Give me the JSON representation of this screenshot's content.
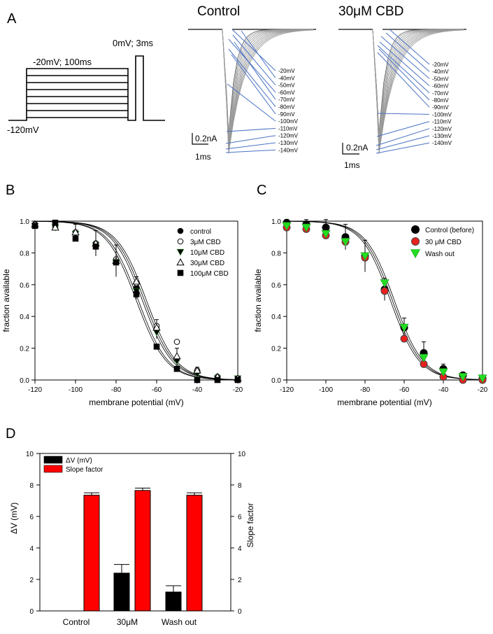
{
  "figure": {
    "panel_labels": [
      "A",
      "B",
      "C",
      "D"
    ]
  },
  "panel_a": {
    "protocol_labels": {
      "hold": "-120mV",
      "prepulse": "-20mV; 100ms",
      "test": "0mV; 3ms"
    },
    "traces": [
      {
        "title": "Control",
        "voltages": [
          "-20mV",
          "-40mV",
          "-50mV",
          "-60mV",
          "-70mV",
          "-80mV",
          "-90mV",
          "-100mV",
          "-110mV",
          "-120mV",
          "-130mV",
          "-140mV"
        ],
        "scale_current": "0.2nA",
        "scale_time": "1ms"
      },
      {
        "title": "30μM CBD",
        "voltages": [
          "-20mV",
          "-40mV",
          "-50mV",
          "-60mV",
          "-70mV",
          "-80mV",
          "-90mV",
          "-100mV",
          "-110mV",
          "-120mV",
          "-130mV",
          "-140mV"
        ],
        "scale_current": "0.2nA",
        "scale_time": "1ms"
      }
    ]
  },
  "chart_data": [
    {
      "panel": "B",
      "type": "scatter",
      "xlabel": "membrane potential (mV)",
      "ylabel": "fraction available",
      "xlim": [
        -120,
        -20
      ],
      "ylim": [
        0,
        1.0
      ],
      "xticks": [
        -120,
        -100,
        -80,
        -60,
        -40,
        -20
      ],
      "yticks": [
        0.0,
        0.2,
        0.4,
        0.6,
        0.8,
        1.0
      ],
      "ytick_labels": [
        "0.0",
        "0.2",
        "0.4",
        "0.6",
        "0.8",
        "1.0"
      ],
      "legend_position": "right",
      "series": [
        {
          "name": "control",
          "marker": "circle-filled",
          "x": [
            -120,
            -110,
            -100,
            -90,
            -80,
            -70,
            -60,
            -50,
            -40,
            -30,
            -20
          ],
          "y": [
            0.98,
            0.97,
            0.93,
            0.86,
            0.75,
            0.58,
            0.32,
            0.13,
            0.05,
            0.02,
            0.01
          ]
        },
        {
          "name": "3μM CBD",
          "marker": "circle-open",
          "x": [
            -120,
            -110,
            -100,
            -90,
            -80,
            -70,
            -60,
            -50,
            -40,
            -30,
            -20
          ],
          "y": [
            0.98,
            0.96,
            0.93,
            0.86,
            0.76,
            0.61,
            0.34,
            0.24,
            0.06,
            0.02,
            0.01
          ]
        },
        {
          "name": "10μM CBD",
          "marker": "triangle-down-filled",
          "x": [
            -120,
            -110,
            -100,
            -90,
            -80,
            -70,
            -60,
            -50,
            -40,
            -30,
            -20
          ],
          "y": [
            0.97,
            0.96,
            0.92,
            0.85,
            0.74,
            0.56,
            0.3,
            0.12,
            0.04,
            0.01,
            0.01
          ]
        },
        {
          "name": "30μM CBD",
          "marker": "triangle-up-open",
          "x": [
            -120,
            -110,
            -100,
            -90,
            -80,
            -70,
            -60,
            -50,
            -40,
            -30,
            -20
          ],
          "y": [
            0.98,
            0.96,
            0.93,
            0.86,
            0.75,
            0.62,
            0.33,
            0.15,
            0.06,
            0.02,
            0.01
          ]
        },
        {
          "name": "100μM CBD",
          "marker": "square-filled",
          "x": [
            -120,
            -110,
            -100,
            -90,
            -80,
            -70,
            -60,
            -50,
            -40,
            -30,
            -20
          ],
          "y": [
            0.97,
            0.99,
            0.89,
            0.84,
            0.74,
            0.54,
            0.21,
            0.07,
            0.0,
            0.0,
            0.0
          ]
        }
      ],
      "fits": [
        {
          "v_half": -67
        },
        {
          "v_half": -66
        },
        {
          "v_half": -69
        },
        {
          "v_half": -65
        },
        {
          "v_half": -70
        }
      ]
    },
    {
      "panel": "C",
      "type": "scatter",
      "xlabel": "membrane potential (mV)",
      "ylabel": "fraction available",
      "xlim": [
        -120,
        -20
      ],
      "ylim": [
        0,
        1.0
      ],
      "xticks": [
        -120,
        -100,
        -80,
        -60,
        -40,
        -20
      ],
      "yticks": [
        0.0,
        0.2,
        0.4,
        0.6,
        0.8,
        1.0
      ],
      "ytick_labels": [
        "0.0",
        "0.2",
        "0.4",
        "0.6",
        "0.8",
        "1.0"
      ],
      "legend_position": "top-right",
      "series": [
        {
          "name": "Control (before)",
          "color": "#000000",
          "marker": "circle",
          "x": [
            -120,
            -110,
            -100,
            -90,
            -80,
            -70,
            -60,
            -50,
            -40,
            -30,
            -20
          ],
          "y": [
            0.99,
            0.98,
            0.96,
            0.9,
            0.78,
            0.57,
            0.33,
            0.17,
            0.07,
            0.03,
            0.01
          ]
        },
        {
          "name": "30 μM CBD",
          "color": "#e8201e",
          "marker": "circle",
          "x": [
            -120,
            -110,
            -100,
            -90,
            -80,
            -70,
            -60,
            -50,
            -40,
            -30,
            -20
          ],
          "y": [
            0.96,
            0.95,
            0.91,
            0.87,
            0.77,
            0.56,
            0.26,
            0.1,
            0.02,
            0.0,
            0.0
          ]
        },
        {
          "name": "Wash out",
          "color": "#22dd22",
          "marker": "triangle-down",
          "x": [
            -120,
            -110,
            -100,
            -90,
            -80,
            -70,
            -60,
            -50,
            -40,
            -30,
            -20
          ],
          "y": [
            0.97,
            0.96,
            0.92,
            0.87,
            0.78,
            0.61,
            0.33,
            0.14,
            0.05,
            0.02,
            0.01
          ]
        }
      ],
      "fits": [
        {
          "v_half": -65
        },
        {
          "v_half": -67
        },
        {
          "v_half": -66
        }
      ]
    },
    {
      "panel": "D",
      "type": "bar",
      "categories": [
        "Control",
        "30μM",
        "Wash out"
      ],
      "ylabel": "ΔV (mV)",
      "y2label": "Slope factor",
      "ylim": [
        0,
        10
      ],
      "y2lim": [
        0,
        10
      ],
      "yticks": [
        0,
        2,
        4,
        6,
        8,
        10
      ],
      "legend_position": "top-left",
      "series": [
        {
          "name": "ΔV (mV)",
          "color": "#000000",
          "axis": "left",
          "values": [
            0,
            2.4,
            1.2
          ],
          "errors": [
            0,
            0.55,
            0.4
          ]
        },
        {
          "name": "Slope factor",
          "color": "#ff0000",
          "axis": "right",
          "values": [
            7.35,
            7.65,
            7.35
          ],
          "errors": [
            0.15,
            0.15,
            0.15
          ]
        }
      ]
    }
  ]
}
